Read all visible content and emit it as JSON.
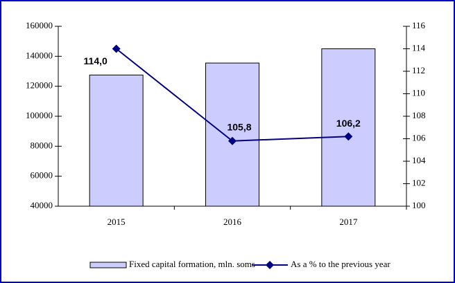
{
  "chart_data": {
    "type": "bar_line",
    "categories": [
      "2015",
      "2016",
      "2017"
    ],
    "series": [
      {
        "name": "Fixed capital formation, mln. soms",
        "type": "bar",
        "color": "#ccccff",
        "values": [
          127500,
          135500,
          145000
        ]
      },
      {
        "name": "As a % to the previous year",
        "type": "line",
        "axis": "y2",
        "color": "#000080",
        "values": [
          114.0,
          105.8,
          106.2
        ],
        "value_labels": [
          "114,0",
          "105,8",
          "106,2"
        ]
      }
    ],
    "ylim": [
      40000,
      160000
    ],
    "yticks": [
      40000,
      60000,
      80000,
      100000,
      120000,
      140000,
      160000
    ],
    "y2lim": [
      100,
      116
    ],
    "y2ticks": [
      100,
      102,
      104,
      106,
      108,
      110,
      112,
      114,
      116
    ],
    "legend": "bottom"
  }
}
